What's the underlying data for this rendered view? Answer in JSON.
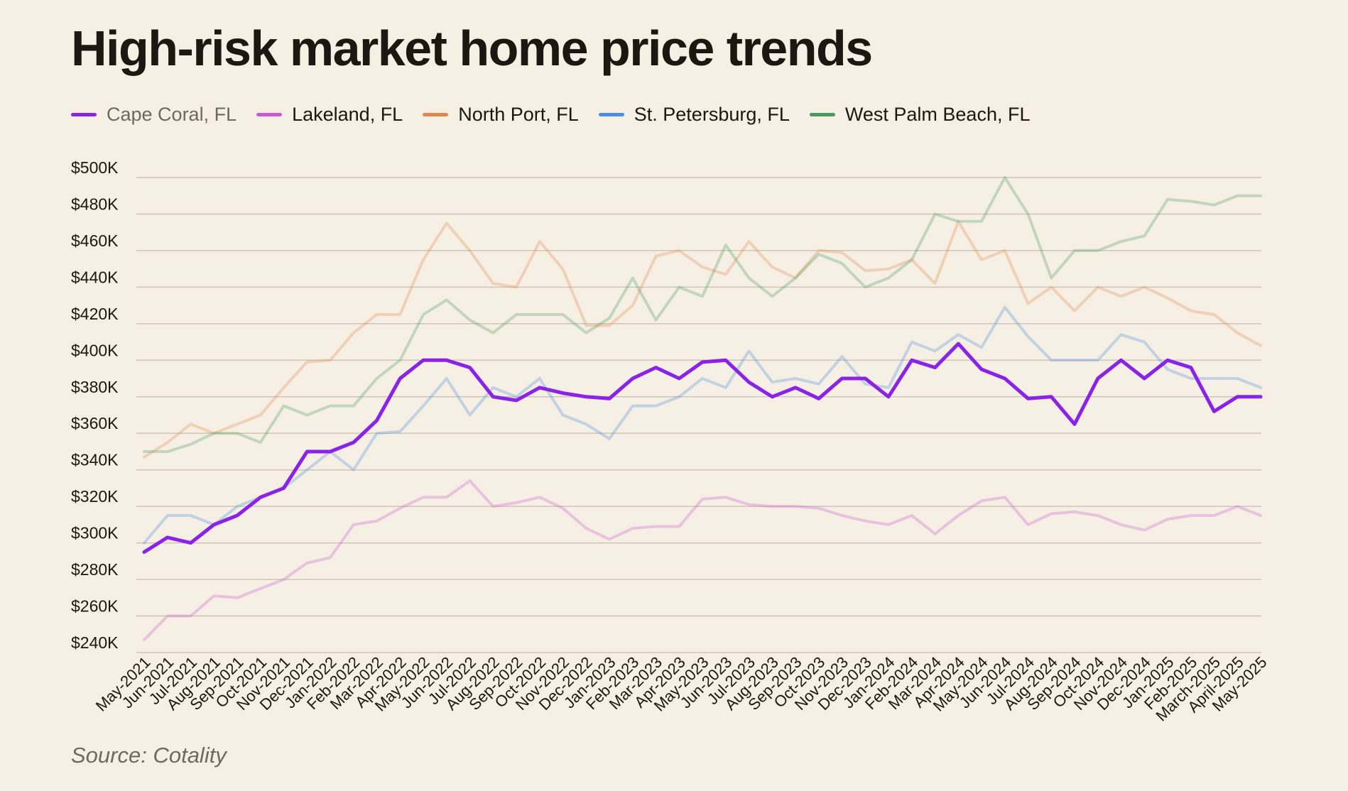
{
  "title": "High-risk market home price trends",
  "source": "Source: Cotality",
  "colors": {
    "cape_coral": "#8a22e8",
    "lakeland": "#c95ad6",
    "north_port": "#e08850",
    "st_petersburg": "#4a90e2",
    "west_palm_beach": "#4a9a5e"
  },
  "chart_data": {
    "type": "line",
    "title": "High-risk market home price trends",
    "xlabel": "",
    "ylabel": "",
    "ylim": [
      240,
      500
    ],
    "yticks": [
      240,
      260,
      280,
      300,
      320,
      340,
      360,
      380,
      400,
      420,
      440,
      460,
      480,
      500
    ],
    "ytick_labels": [
      "$240K",
      "$260K",
      "$280K",
      "$300K",
      "$320K",
      "$340K",
      "$360K",
      "$380K",
      "$400K",
      "$420K",
      "$440K",
      "$460K",
      "$480K",
      "$500K"
    ],
    "grid": true,
    "legend_position": "top",
    "highlighted_series": "Cape Coral, FL",
    "categories": [
      "May-2021",
      "Jun-2021",
      "Jul-2021",
      "Aug-2021",
      "Sep-2021",
      "Oct-2021",
      "Nov-2021",
      "Dec-2021",
      "Jan-2022",
      "Feb-2022",
      "Mar-2022",
      "Apr-2022",
      "May-2022",
      "Jun-2022",
      "Jul-2022",
      "Aug-2022",
      "Sep-2022",
      "Oct-2022",
      "Nov-2022",
      "Dec-2022",
      "Jan-2023",
      "Feb-2023",
      "Mar-2023",
      "Apr-2023",
      "May-2023",
      "Jun-2023",
      "Jul-2023",
      "Aug-2023",
      "Sep-2023",
      "Oct-2023",
      "Nov-2023",
      "Dec-2023",
      "Jan-2024",
      "Feb-2024",
      "Mar-2024",
      "Apr-2024",
      "May-2024",
      "Jun-2024",
      "Jul-2024",
      "Aug-2024",
      "Sep-2024",
      "Oct-2024",
      "Nov-2024",
      "Dec-2024",
      "Jan-2025",
      "Feb-2025",
      "March-2025",
      "April-2025",
      "May-2025"
    ],
    "series": [
      {
        "name": "Lakeland, FL",
        "color_key": "lakeland",
        "values": [
          247,
          260,
          260,
          271,
          270,
          275,
          280,
          289,
          292,
          310,
          312,
          319,
          325,
          325,
          334,
          320,
          322,
          325,
          319,
          308,
          302,
          308,
          309,
          309,
          324,
          325,
          321,
          320,
          320,
          319,
          315,
          312,
          310,
          315,
          305,
          315,
          323,
          325,
          310,
          316,
          317,
          315,
          310,
          307,
          313,
          315,
          315,
          320,
          315
        ]
      },
      {
        "name": "North Port, FL",
        "color_key": "north_port",
        "values": [
          347,
          355,
          365,
          360,
          365,
          370,
          385,
          399,
          400,
          415,
          425,
          425,
          455,
          475,
          460,
          442,
          440,
          465,
          450,
          419,
          419,
          430,
          457,
          460,
          451,
          447,
          465,
          451,
          445,
          460,
          459,
          449,
          450,
          455,
          442,
          476,
          455,
          460,
          431,
          440,
          427,
          440,
          435,
          440,
          434,
          427,
          425,
          415,
          408
        ]
      },
      {
        "name": "St. Petersburg, FL",
        "color_key": "st_petersburg",
        "values": [
          300,
          315,
          315,
          310,
          320,
          325,
          330,
          340,
          350,
          340,
          360,
          361,
          375,
          390,
          370,
          385,
          380,
          390,
          370,
          365,
          357,
          375,
          375,
          380,
          390,
          385,
          405,
          388,
          390,
          387,
          402,
          387,
          385,
          410,
          405,
          414,
          407,
          429,
          413,
          400,
          400,
          400,
          414,
          410,
          395,
          390,
          390,
          390,
          385
        ]
      },
      {
        "name": "West Palm Beach, FL",
        "color_key": "west_palm_beach",
        "values": [
          350,
          350,
          354,
          360,
          360,
          355,
          375,
          370,
          375,
          375,
          390,
          400,
          425,
          433,
          422,
          415,
          425,
          425,
          425,
          415,
          423,
          445,
          422,
          440,
          435,
          463,
          445,
          435,
          445,
          458,
          453,
          440,
          445,
          455,
          480,
          476,
          476,
          500,
          480,
          445,
          460,
          460,
          465,
          468,
          488,
          487,
          485,
          490,
          490
        ]
      },
      {
        "name": "Cape Coral, FL",
        "color_key": "cape_coral",
        "values": [
          295,
          303,
          300,
          310,
          315,
          325,
          330,
          350,
          350,
          355,
          367,
          390,
          400,
          400,
          396,
          380,
          378,
          385,
          382,
          380,
          379,
          390,
          396,
          390,
          399,
          400,
          388,
          380,
          385,
          379,
          390,
          390,
          380,
          400,
          396,
          409,
          395,
          390,
          379,
          380,
          365,
          390,
          400,
          390,
          400,
          396,
          372,
          380,
          380
        ]
      }
    ]
  },
  "legend": [
    {
      "label": "Cape Coral, FL",
      "color_key": "cape_coral"
    },
    {
      "label": "Lakeland, FL",
      "color_key": "lakeland"
    },
    {
      "label": "North Port, FL",
      "color_key": "north_port"
    },
    {
      "label": "St. Petersburg, FL",
      "color_key": "st_petersburg"
    },
    {
      "label": "West Palm Beach, FL",
      "color_key": "west_palm_beach"
    }
  ]
}
